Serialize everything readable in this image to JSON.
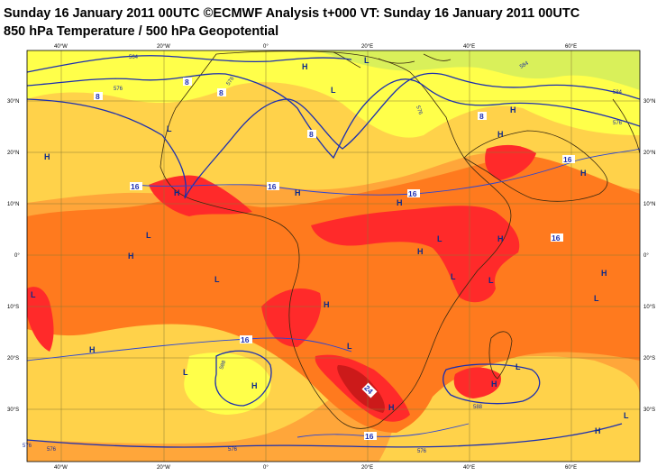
{
  "title_line1": "Sunday 16 January 2011 00UTC ©ECMWF Analysis t+000 VT: Sunday 16 January 2011 00UTC",
  "title_line2": "850 hPa Temperature / 500 hPa Geopotential",
  "colors": {
    "pale_green": "#d9f05a",
    "yellow": "#ffff4a",
    "light_orange": "#ffd24a",
    "orange": "#ffa63a",
    "dark_orange": "#ff7a1e",
    "red": "#ff2a2a",
    "dark_red": "#cc1a1a",
    "contour_blue": "#1c2fb0",
    "grid": "#8a7a30",
    "coast": "#3a2a10"
  },
  "lon_ticks_top": [
    "40°W",
    "20°W",
    "0°",
    "20°E",
    "40°E",
    "60°E"
  ],
  "lon_ticks_bottom": [
    "40°W",
    "20°W",
    "0°",
    "20°E",
    "40°E",
    "60°E"
  ],
  "lat_ticks_left": [
    "30°N",
    "20°N",
    "10°N",
    "0°",
    "10°S",
    "20°S",
    "30°S"
  ],
  "lat_ticks_right": [
    "30°N",
    "20°N",
    "10°N",
    "0°",
    "10°S",
    "20°S",
    "30°S"
  ],
  "pressure_centers": [
    {
      "text": "H"
    },
    {
      "text": "L"
    },
    {
      "text": "H"
    },
    {
      "text": "L"
    },
    {
      "text": "H"
    },
    {
      "text": "L"
    },
    {
      "text": "H"
    },
    {
      "text": "H"
    },
    {
      "text": "H"
    },
    {
      "text": "L"
    },
    {
      "text": "H"
    },
    {
      "text": "L"
    },
    {
      "text": "H"
    },
    {
      "text": "H"
    },
    {
      "text": "L"
    },
    {
      "text": "H"
    },
    {
      "text": "L"
    },
    {
      "text": "H"
    },
    {
      "text": "H"
    },
    {
      "text": "L"
    },
    {
      "text": "H"
    },
    {
      "text": "L"
    },
    {
      "text": "H"
    },
    {
      "text": "L"
    },
    {
      "text": "H"
    },
    {
      "text": "L"
    },
    {
      "text": "H"
    },
    {
      "text": "L"
    },
    {
      "text": "H"
    },
    {
      "text": "L"
    },
    {
      "text": "H"
    },
    {
      "text": "L"
    }
  ],
  "geopotential_labels": [
    "564",
    "576",
    "576",
    "584",
    "576",
    "576",
    "584",
    "576",
    "588",
    "588",
    "576",
    "576",
    "576"
  ],
  "temperature_labels": [
    "8",
    "8",
    "8",
    "8",
    "8",
    "16",
    "16",
    "16",
    "16",
    "16",
    "16",
    "16",
    "24"
  ]
}
